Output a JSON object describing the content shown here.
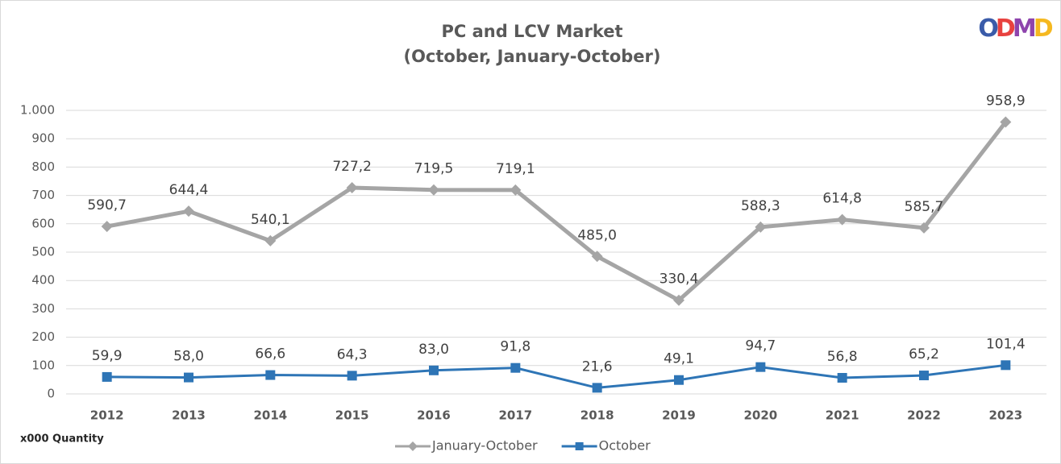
{
  "chart_data": {
    "type": "line",
    "title": "PC and LCV Market",
    "subtitle": "(October, January-October)",
    "logo": "ODMD",
    "note": "x000 Quantity",
    "categories": [
      "2012",
      "2013",
      "2014",
      "2015",
      "2016",
      "2017",
      "2018",
      "2019",
      "2020",
      "2021",
      "2022",
      "2023"
    ],
    "series": [
      {
        "name": "January-October",
        "color": "#a5a5a5",
        "marker": "diamond",
        "values": [
          590.7,
          644.4,
          540.1,
          727.2,
          719.5,
          719.1,
          485.0,
          330.4,
          588.3,
          614.8,
          585.7,
          958.9
        ],
        "value_labels": [
          "590,7",
          "644,4",
          "540,1",
          "727,2",
          "719,5",
          "719,1",
          "485,0",
          "330,4",
          "588,3",
          "614,8",
          "585,7",
          "958,9"
        ]
      },
      {
        "name": "October",
        "color": "#2e75b6",
        "marker": "square",
        "values": [
          59.9,
          58.0,
          66.6,
          64.3,
          83.0,
          91.8,
          21.6,
          49.1,
          94.7,
          56.8,
          65.2,
          101.4
        ],
        "value_labels": [
          "59,9",
          "58,0",
          "66,6",
          "64,3",
          "83,0",
          "91,8",
          "21,6",
          "49,1",
          "94,7",
          "56,8",
          "65,2",
          "101,4"
        ]
      }
    ],
    "ylim": [
      0,
      1000
    ],
    "yticks": [
      0,
      100,
      200,
      300,
      400,
      500,
      600,
      700,
      800,
      900,
      {
        "value": 1000,
        "label": "1.000"
      }
    ],
    "grid": true,
    "legend": "bottom"
  }
}
